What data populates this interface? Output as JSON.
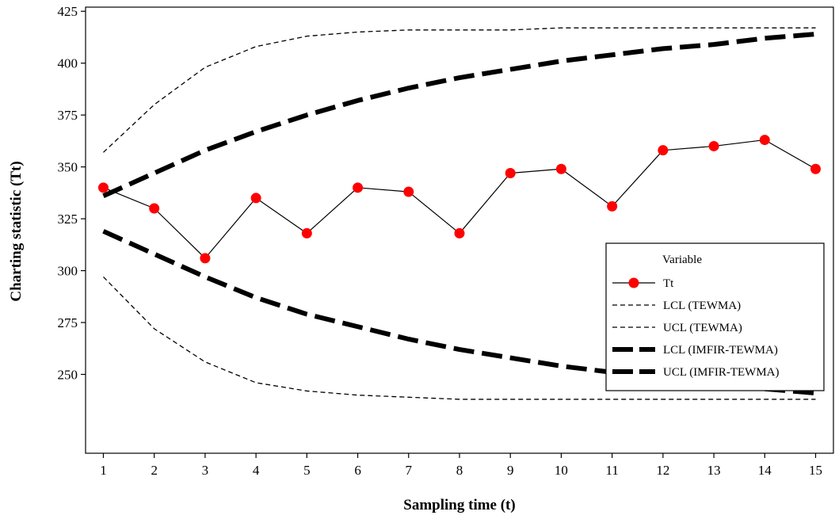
{
  "chart_data": {
    "type": "line",
    "title": "",
    "xlabel": "Sampling time (t)",
    "ylabel": "Charting statistic (Tt)",
    "xlim": [
      0.65,
      15.35
    ],
    "ylim": [
      212,
      427
    ],
    "x_ticks": [
      1,
      2,
      3,
      4,
      5,
      6,
      7,
      8,
      9,
      10,
      11,
      12,
      13,
      14,
      15
    ],
    "y_ticks": [
      250,
      275,
      300,
      325,
      350,
      375,
      400,
      425
    ],
    "grid": false,
    "legend_title": "Variable",
    "legend_position": "right",
    "x": [
      1,
      2,
      3,
      4,
      5,
      6,
      7,
      8,
      9,
      10,
      11,
      12,
      13,
      14,
      15
    ],
    "series": [
      {
        "name": "Tt",
        "style": "solid-marker",
        "color": "#000000",
        "marker_color": "#ff0000",
        "values": [
          340,
          330,
          306,
          335,
          318,
          340,
          338,
          318,
          347,
          349,
          331,
          358,
          360,
          363,
          349
        ]
      },
      {
        "name": "LCL (TEWMA)",
        "style": "thin-dash",
        "color": "#000000",
        "values": [
          297,
          272,
          256,
          246,
          242,
          240,
          239,
          238,
          238,
          238,
          238,
          238,
          238,
          238,
          238
        ]
      },
      {
        "name": "UCL (TEWMA)",
        "style": "thin-dash",
        "color": "#000000",
        "values": [
          357,
          380,
          398,
          408,
          413,
          415,
          416,
          416,
          416,
          417,
          417,
          417,
          417,
          417,
          417
        ]
      },
      {
        "name": "LCL (IMFIR-TEWMA)",
        "style": "thick-dash",
        "color": "#000000",
        "values": [
          319,
          308,
          297,
          287,
          279,
          273,
          267,
          262,
          258,
          254,
          251,
          248,
          245,
          243,
          241
        ]
      },
      {
        "name": "UCL (IMFIR-TEWMA)",
        "style": "thick-dash",
        "color": "#000000",
        "values": [
          336,
          347,
          358,
          367,
          375,
          382,
          388,
          393,
          397,
          401,
          404,
          407,
          409,
          412,
          414
        ]
      }
    ]
  }
}
